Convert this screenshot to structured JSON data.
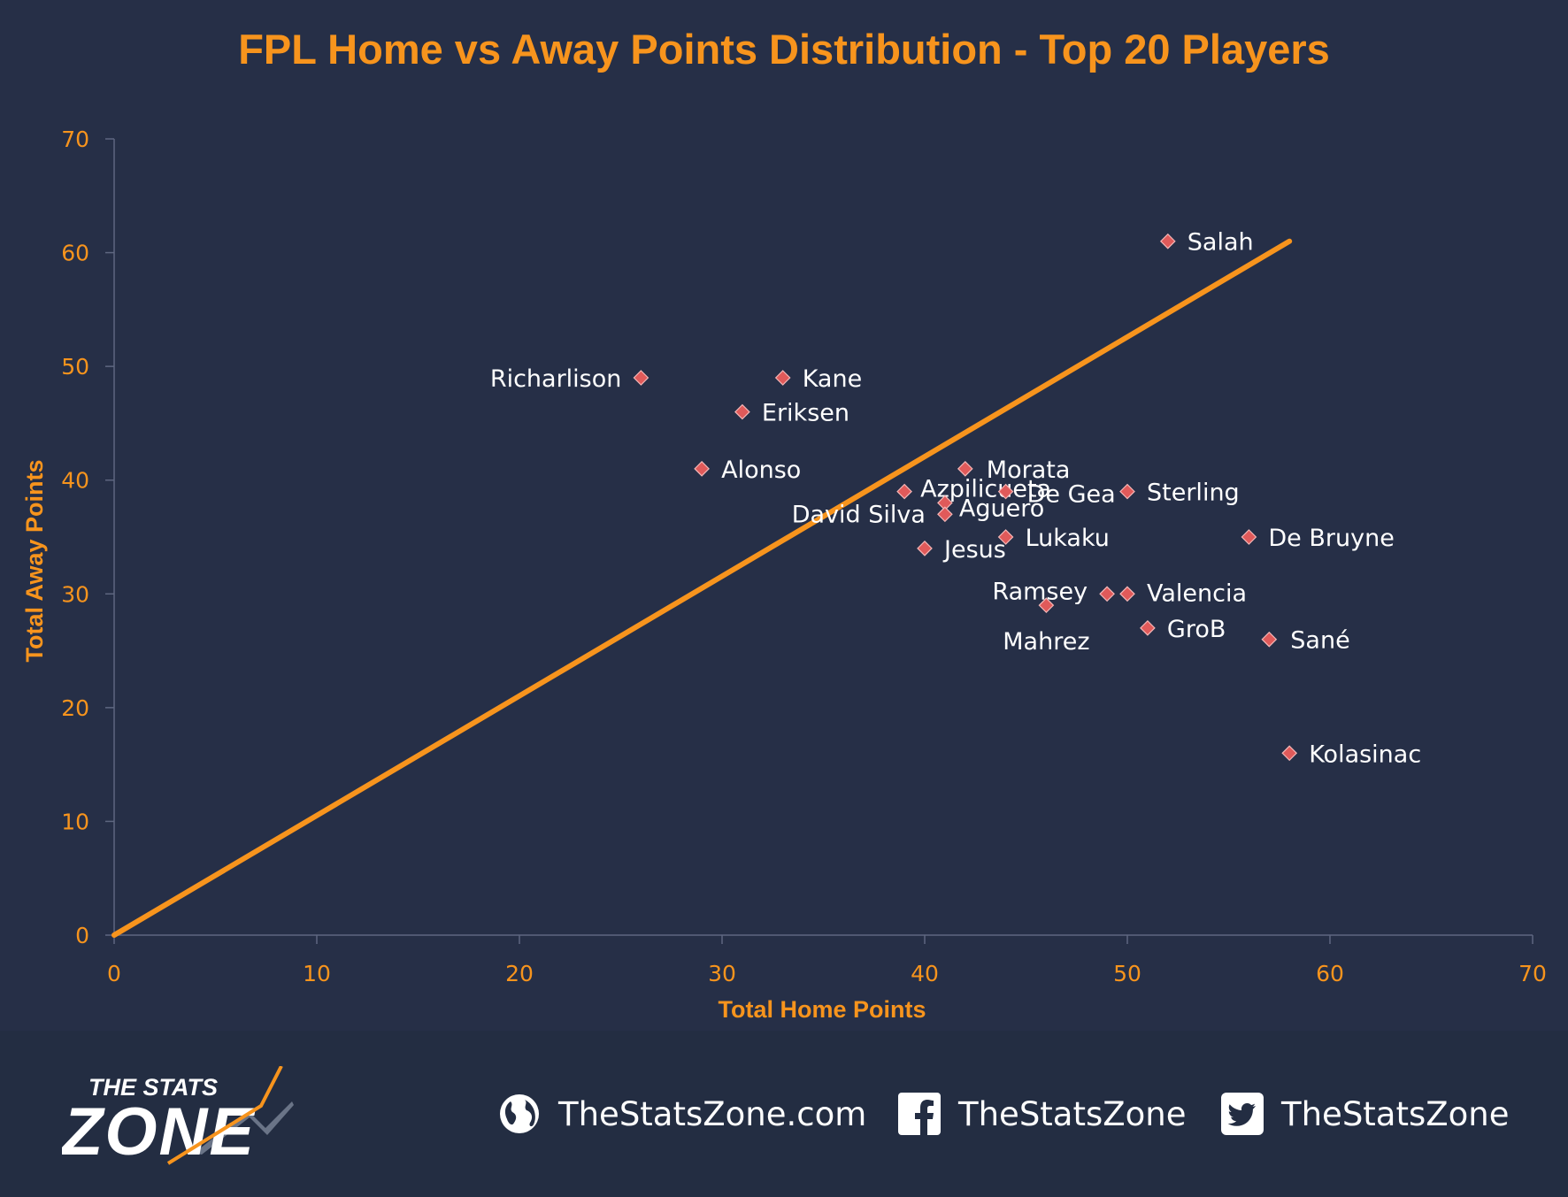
{
  "chart_data": {
    "type": "scatter",
    "title": "FPL Home vs Away Points Distribution - Top 20 Players",
    "xlabel": "Total Home Points",
    "ylabel": "Total Away Points",
    "xlim": [
      0,
      70
    ],
    "ylim": [
      0,
      70
    ],
    "xticks": [
      0,
      10,
      20,
      30,
      40,
      50,
      60,
      70
    ],
    "yticks": [
      0,
      10,
      20,
      30,
      40,
      50,
      60,
      70
    ],
    "grid": false,
    "colors": {
      "title": "#f7941d",
      "axis_text": "#f7941d",
      "line": "#f7941d",
      "marker": "#e05a5a",
      "label": "#ffffff"
    },
    "points": [
      {
        "name": "Salah",
        "x": 52,
        "y": 61
      },
      {
        "name": "Richarlison",
        "x": 26,
        "y": 49
      },
      {
        "name": "Kane",
        "x": 33,
        "y": 49
      },
      {
        "name": "Eriksen",
        "x": 31,
        "y": 46
      },
      {
        "name": "Alonso",
        "x": 29,
        "y": 41
      },
      {
        "name": "Morata",
        "x": 42,
        "y": 41
      },
      {
        "name": "Azpilicueta",
        "x": 39,
        "y": 39
      },
      {
        "name": "De Gea",
        "x": 44,
        "y": 39
      },
      {
        "name": "Sterling",
        "x": 50,
        "y": 39
      },
      {
        "name": "David Silva",
        "x": 41,
        "y": 38
      },
      {
        "name": "Aguero",
        "x": 41,
        "y": 37
      },
      {
        "name": "Lukaku",
        "x": 44,
        "y": 35
      },
      {
        "name": "De Bruyne",
        "x": 56,
        "y": 35
      },
      {
        "name": "Jesus",
        "x": 40,
        "y": 34
      },
      {
        "name": "Ramsey",
        "x": 49,
        "y": 30
      },
      {
        "name": "Valencia",
        "x": 50,
        "y": 30
      },
      {
        "name": "Mahrez",
        "x": 46,
        "y": 29
      },
      {
        "name": "GroB",
        "x": 51,
        "y": 27
      },
      {
        "name": "Sané",
        "x": 57,
        "y": 26
      },
      {
        "name": "Kolasinac",
        "x": 58,
        "y": 16
      }
    ],
    "trendline": {
      "from": [
        0,
        0
      ],
      "to": [
        58,
        61
      ]
    }
  },
  "footer": {
    "brand_top": "THE STATS",
    "brand_bottom": "ZONE",
    "website": "TheStatsZone.com",
    "facebook": "TheStatsZone",
    "twitter": "TheStatsZone",
    "icons": [
      "globe-icon",
      "facebook-icon",
      "twitter-icon"
    ]
  }
}
